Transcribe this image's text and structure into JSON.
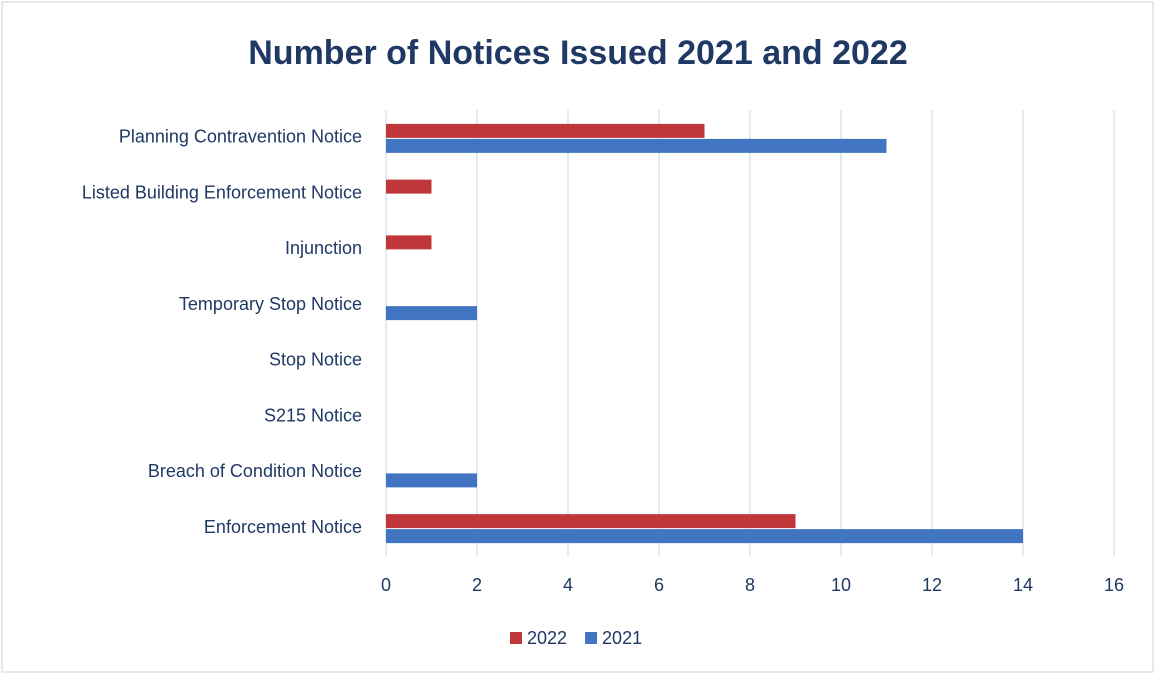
{
  "chart_data": {
    "type": "hbar",
    "title": "Number of Notices Issued 2021 and 2022",
    "categories": [
      "Planning Contravention Notice",
      "Listed Building Enforcement Notice",
      "Injunction",
      "Temporary Stop Notice",
      "Stop Notice",
      "S215 Notice",
      "Breach of Condition Notice",
      "Enforcement Notice"
    ],
    "series": [
      {
        "name": "2022",
        "color": "#c0373a",
        "values": [
          7,
          1,
          1,
          0,
          0,
          0,
          0,
          9
        ]
      },
      {
        "name": "2021",
        "color": "#4174c1",
        "values": [
          11,
          0,
          0,
          2,
          0,
          0,
          2,
          14
        ]
      }
    ],
    "xlim": [
      0,
      16
    ],
    "xticks": [
      0,
      2,
      4,
      6,
      8,
      10,
      12,
      14,
      16
    ],
    "grid": true,
    "legend": "bottom"
  }
}
